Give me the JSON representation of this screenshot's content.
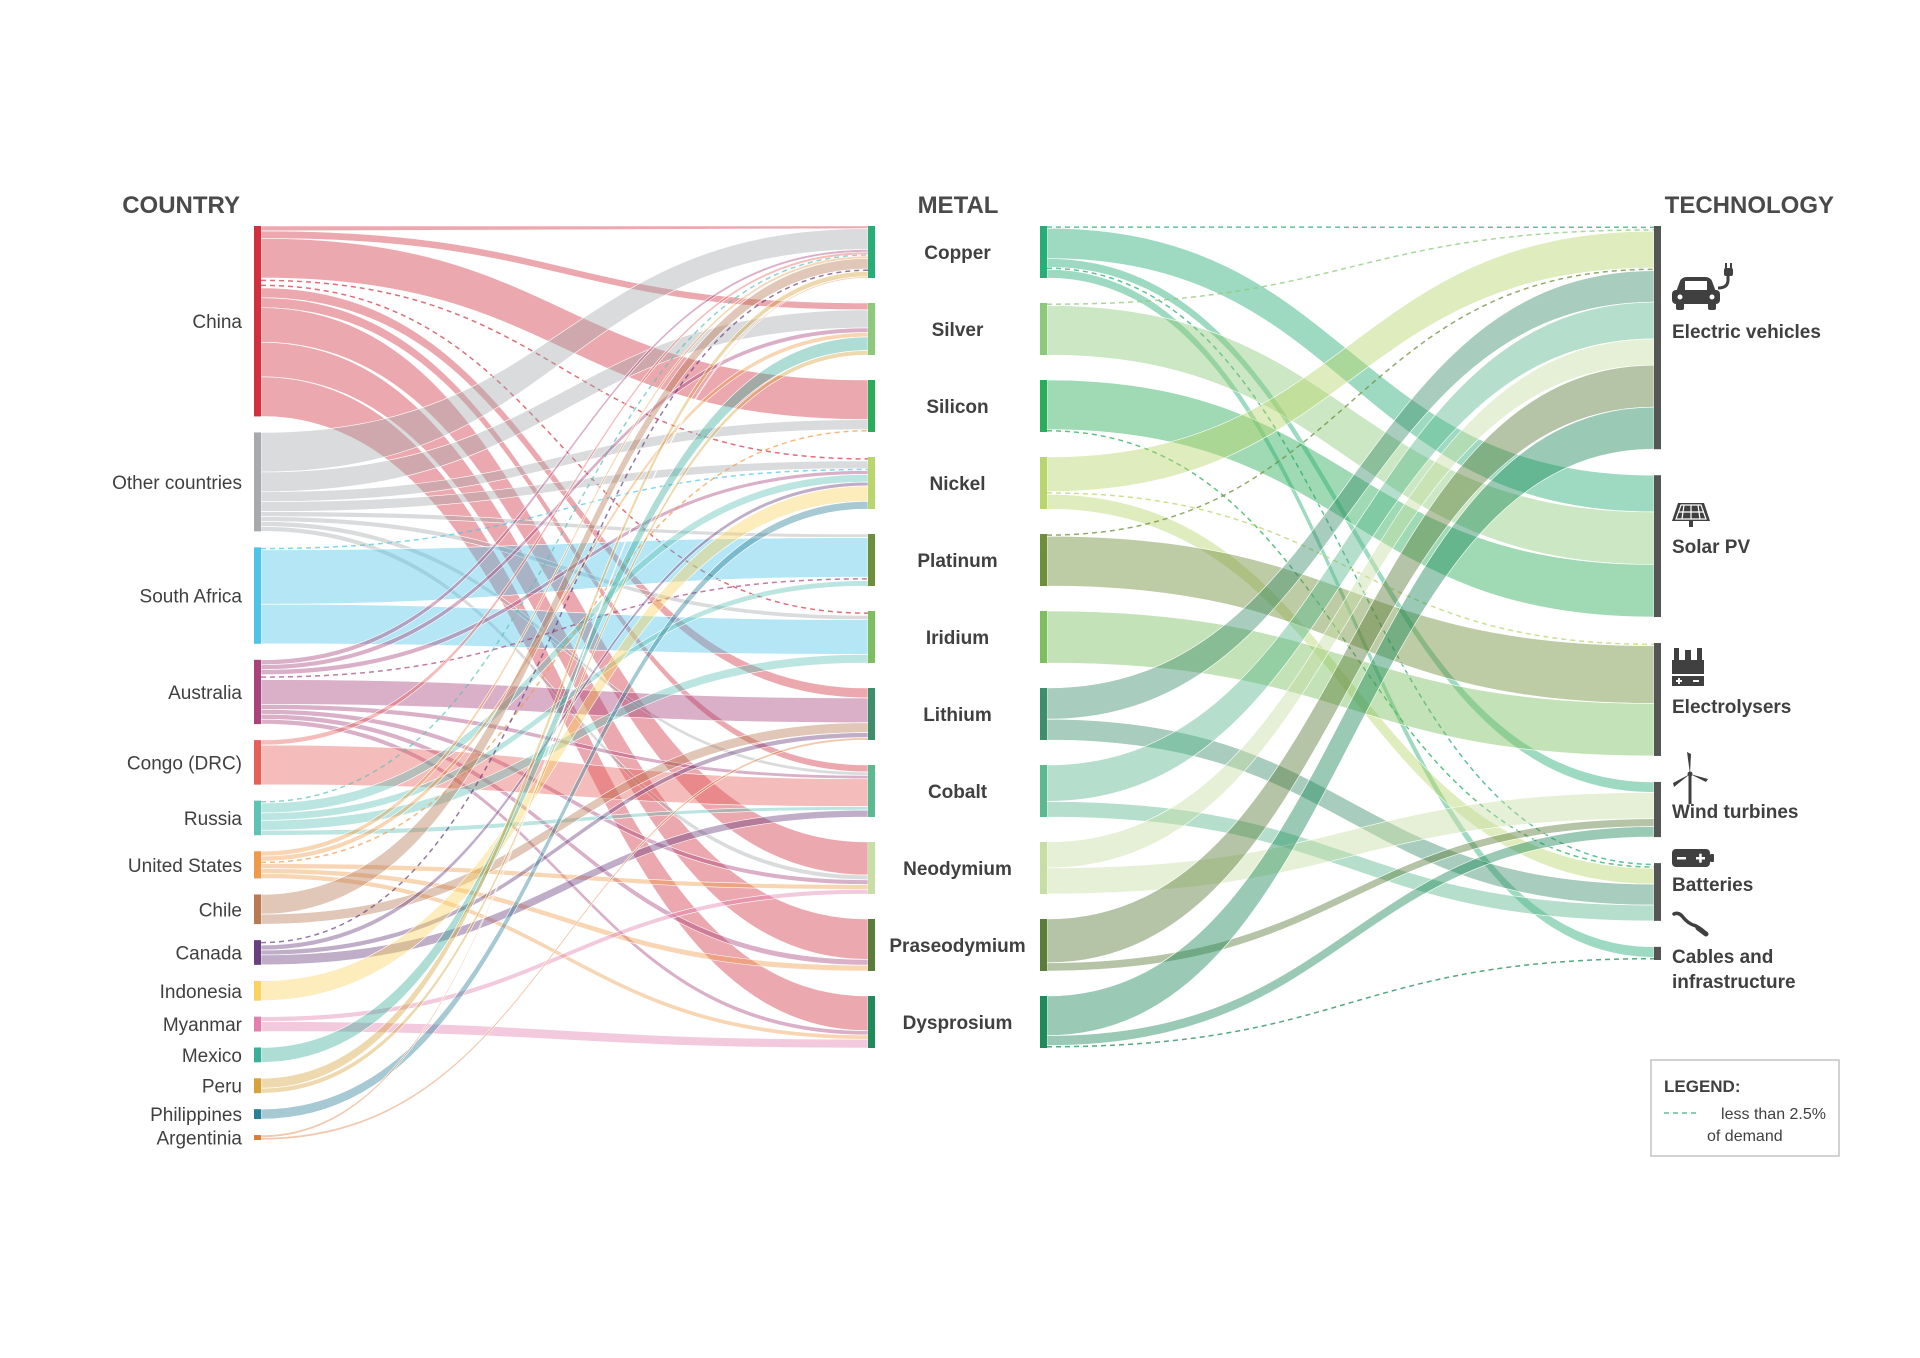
{
  "headers": {
    "country": "COUNTRY",
    "metal": "METAL",
    "technology": "TECHNOLOGY"
  },
  "legend": {
    "title": "LEGEND:",
    "line1": "less than 2.5%",
    "line2": "of demand"
  },
  "chart_data": {
    "type": "sankey",
    "note": "Flow widths estimated from relative band thickness; no numeric values are printed in the image.",
    "countries": [
      {
        "id": "china",
        "label": "China",
        "color": "#d23040",
        "value": 41
      },
      {
        "id": "other",
        "label": "Other countries",
        "color": "#a7a9ac",
        "value": 20
      },
      {
        "id": "southafrica",
        "label": "South Africa",
        "color": "#4fc3e8",
        "value": 19
      },
      {
        "id": "australia",
        "label": "Australia",
        "color": "#a8437b",
        "value": 14
      },
      {
        "id": "congo",
        "label": "Congo (DRC)",
        "color": "#e5605a",
        "value": 9
      },
      {
        "id": "russia",
        "label": "Russia",
        "color": "#5ec2b5",
        "value": 8
      },
      {
        "id": "us",
        "label": "United States",
        "color": "#ef9a4a",
        "value": 7
      },
      {
        "id": "chile",
        "label": "Chile",
        "color": "#b87a55",
        "value": 6
      },
      {
        "id": "canada",
        "label": "Canada",
        "color": "#6a3f7e",
        "value": 5
      },
      {
        "id": "indonesia",
        "label": "Indonesia",
        "color": "#fbd15f",
        "value": 4
      },
      {
        "id": "myanmar",
        "label": "Myanmar",
        "color": "#e27fae",
        "value": 3
      },
      {
        "id": "mexico",
        "label": "Mexico",
        "color": "#3caf9a",
        "value": 3
      },
      {
        "id": "peru",
        "label": "Peru",
        "color": "#d6a23c",
        "value": 3
      },
      {
        "id": "philippines",
        "label": "Philippines",
        "color": "#2a7f96",
        "value": 2
      },
      {
        "id": "argentina",
        "label": "Argentinia",
        "color": "#e07b3a",
        "value": 1
      }
    ],
    "metals": [
      {
        "id": "copper",
        "label": "Copper",
        "color": "#27ae77"
      },
      {
        "id": "silver",
        "label": "Silver",
        "color": "#8cc97a"
      },
      {
        "id": "silicon",
        "label": "Silicon",
        "color": "#2aad5a"
      },
      {
        "id": "nickel",
        "label": "Nickel",
        "color": "#b9d56d"
      },
      {
        "id": "platinum",
        "label": "Platinum",
        "color": "#6e8f3a"
      },
      {
        "id": "iridium",
        "label": "Iridium",
        "color": "#7dbf5f"
      },
      {
        "id": "lithium",
        "label": "Lithium",
        "color": "#3d8f6c"
      },
      {
        "id": "cobalt",
        "label": "Cobalt",
        "color": "#5cb88f"
      },
      {
        "id": "neodymium",
        "label": "Neodymium",
        "color": "#c7dea5"
      },
      {
        "id": "praseodymium",
        "label": "Praseodymium",
        "color": "#5b7d3a"
      },
      {
        "id": "dysprosium",
        "label": "Dysprosium",
        "color": "#1f8a5a"
      }
    ],
    "technologies": [
      {
        "id": "ev",
        "label": "Electric vehicles",
        "icon": "car-charging-icon",
        "value": 46
      },
      {
        "id": "solar",
        "label": "Solar PV",
        "icon": "solar-panel-icon",
        "value": 30
      },
      {
        "id": "electrolysers",
        "label": "Electrolysers",
        "icon": "electrolyser-icon",
        "value": 22
      },
      {
        "id": "wind",
        "label": "Wind turbines",
        "icon": "wind-turbine-icon",
        "value": 12
      },
      {
        "id": "batteries",
        "label": "Batteries",
        "icon": "battery-icon",
        "value": 10
      },
      {
        "id": "cables",
        "label": "Cables and infrastructure",
        "label_line1": "Cables and",
        "label_line2": "infrastructure",
        "icon": "cable-icon",
        "value": 2
      }
    ],
    "links_country_metal": [
      {
        "s": "china",
        "t": "copper",
        "v": 1
      },
      {
        "s": "china",
        "t": "silver",
        "v": 1.5
      },
      {
        "s": "china",
        "t": "silicon",
        "v": 8
      },
      {
        "s": "china",
        "t": "lithium",
        "v": 2
      },
      {
        "s": "china",
        "t": "cobalt",
        "v": 2
      },
      {
        "s": "china",
        "t": "neodymium",
        "v": 7
      },
      {
        "s": "china",
        "t": "praseodymium",
        "v": 7
      },
      {
        "s": "china",
        "t": "dysprosium",
        "v": 8
      },
      {
        "s": "china",
        "t": "nickel",
        "v": 1,
        "dashed": true
      },
      {
        "s": "china",
        "t": "iridium",
        "v": 1,
        "dashed": true
      },
      {
        "s": "other",
        "t": "copper",
        "v": 8
      },
      {
        "s": "other",
        "t": "silver",
        "v": 4
      },
      {
        "s": "other",
        "t": "silicon",
        "v": 2
      },
      {
        "s": "other",
        "t": "nickel",
        "v": 2
      },
      {
        "s": "other",
        "t": "platinum",
        "v": 1
      },
      {
        "s": "other",
        "t": "iridium",
        "v": 1
      },
      {
        "s": "other",
        "t": "cobalt",
        "v": 1
      },
      {
        "s": "other",
        "t": "neodymium",
        "v": 1
      },
      {
        "s": "southafrica",
        "t": "platinum",
        "v": 11
      },
      {
        "s": "southafrica",
        "t": "iridium",
        "v": 8
      },
      {
        "s": "southafrica",
        "t": "nickel",
        "v": 0.5,
        "dashed": true
      },
      {
        "s": "australia",
        "t": "lithium",
        "v": 5
      },
      {
        "s": "australia",
        "t": "nickel",
        "v": 1
      },
      {
        "s": "australia",
        "t": "copper",
        "v": 1
      },
      {
        "s": "australia",
        "t": "silver",
        "v": 1
      },
      {
        "s": "australia",
        "t": "cobalt",
        "v": 1
      },
      {
        "s": "australia",
        "t": "neodymium",
        "v": 1
      },
      {
        "s": "australia",
        "t": "praseodymium",
        "v": 1
      },
      {
        "s": "australia",
        "t": "dysprosium",
        "v": 1
      },
      {
        "s": "australia",
        "t": "platinum",
        "v": 1,
        "dashed": true
      },
      {
        "s": "congo",
        "t": "cobalt",
        "v": 8
      },
      {
        "s": "congo",
        "t": "copper",
        "v": 1
      },
      {
        "s": "russia",
        "t": "nickel",
        "v": 2
      },
      {
        "s": "russia",
        "t": "platinum",
        "v": 1.5
      },
      {
        "s": "russia",
        "t": "iridium",
        "v": 2
      },
      {
        "s": "russia",
        "t": "cobalt",
        "v": 1
      },
      {
        "s": "russia",
        "t": "copper",
        "v": 0.5,
        "dashed": true
      },
      {
        "s": "us",
        "t": "copper",
        "v": 1
      },
      {
        "s": "us",
        "t": "silver",
        "v": 1
      },
      {
        "s": "us",
        "t": "neodymium",
        "v": 1
      },
      {
        "s": "us",
        "t": "praseodymium",
        "v": 1
      },
      {
        "s": "us",
        "t": "dysprosium",
        "v": 1
      },
      {
        "s": "us",
        "t": "silicon",
        "v": 0.5,
        "dashed": true
      },
      {
        "s": "chile",
        "t": "copper",
        "v": 4
      },
      {
        "s": "chile",
        "t": "lithium",
        "v": 2
      },
      {
        "s": "canada",
        "t": "nickel",
        "v": 1
      },
      {
        "s": "canada",
        "t": "lithium",
        "v": 1
      },
      {
        "s": "canada",
        "t": "cobalt",
        "v": 2
      },
      {
        "s": "canada",
        "t": "copper",
        "v": 1,
        "dashed": true
      },
      {
        "s": "indonesia",
        "t": "nickel",
        "v": 4
      },
      {
        "s": "myanmar",
        "t": "dysprosium",
        "v": 2
      },
      {
        "s": "myanmar",
        "t": "neodymium",
        "v": 1
      },
      {
        "s": "mexico",
        "t": "silver",
        "v": 3
      },
      {
        "s": "peru",
        "t": "copper",
        "v": 2
      },
      {
        "s": "peru",
        "t": "silver",
        "v": 1
      },
      {
        "s": "philippines",
        "t": "nickel",
        "v": 2
      },
      {
        "s": "argentina",
        "t": "lithium",
        "v": 0.5
      },
      {
        "s": "argentina",
        "t": "copper",
        "v": 0.5
      }
    ],
    "links_metal_tech": [
      {
        "s": "copper",
        "t": "ev",
        "v": 0.5,
        "dashed": true
      },
      {
        "s": "copper",
        "t": "solar",
        "v": 7
      },
      {
        "s": "copper",
        "t": "wind",
        "v": 2
      },
      {
        "s": "copper",
        "t": "cables",
        "v": 2
      },
      {
        "s": "copper",
        "t": "batteries",
        "v": 0.5,
        "dashed": true
      },
      {
        "s": "silver",
        "t": "solar",
        "v": 10
      },
      {
        "s": "silver",
        "t": "ev",
        "v": 0.5,
        "dashed": true
      },
      {
        "s": "silicon",
        "t": "solar",
        "v": 10
      },
      {
        "s": "silicon",
        "t": "batteries",
        "v": 0.5,
        "dashed": true
      },
      {
        "s": "nickel",
        "t": "ev",
        "v": 7
      },
      {
        "s": "nickel",
        "t": "batteries",
        "v": 3
      },
      {
        "s": "nickel",
        "t": "electrolysers",
        "v": 0.5,
        "dashed": true
      },
      {
        "s": "platinum",
        "t": "electrolysers",
        "v": 11
      },
      {
        "s": "platinum",
        "t": "ev",
        "v": 0.5,
        "dashed": true
      },
      {
        "s": "iridium",
        "t": "electrolysers",
        "v": 10
      },
      {
        "s": "lithium",
        "t": "ev",
        "v": 6
      },
      {
        "s": "lithium",
        "t": "batteries",
        "v": 4
      },
      {
        "s": "cobalt",
        "t": "ev",
        "v": 7
      },
      {
        "s": "cobalt",
        "t": "batteries",
        "v": 3
      },
      {
        "s": "neodymium",
        "t": "ev",
        "v": 5
      },
      {
        "s": "neodymium",
        "t": "wind",
        "v": 5
      },
      {
        "s": "praseodymium",
        "t": "ev",
        "v": 8
      },
      {
        "s": "praseodymium",
        "t": "wind",
        "v": 1.5
      },
      {
        "s": "dysprosium",
        "t": "ev",
        "v": 8
      },
      {
        "s": "dysprosium",
        "t": "wind",
        "v": 2
      },
      {
        "s": "dysprosium",
        "t": "cables",
        "v": 0.5,
        "dashed": true
      }
    ]
  }
}
